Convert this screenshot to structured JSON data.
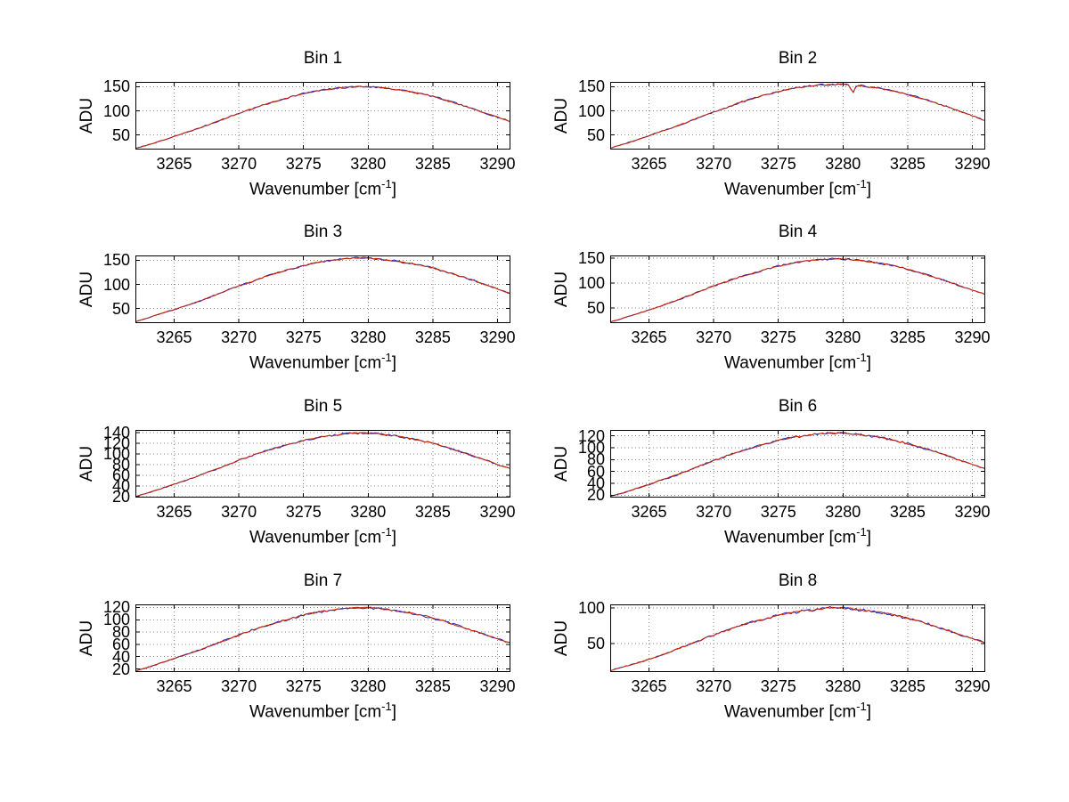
{
  "figure": {
    "background": "#ffffff"
  },
  "labels": {
    "ylabel": "ADU",
    "xlabel_prefix": "Wavenumber [cm",
    "xlabel_sup": "-1",
    "xlabel_suffix": "]"
  },
  "style": {
    "series_colors": [
      "#2222bb",
      "#cc2200"
    ],
    "grid_color": "#8a8a8a",
    "axis_color": "#000000",
    "noise_amplitude_blue": 1.8,
    "noise_amplitude_red": 1.2
  },
  "chart_data": [
    {
      "type": "line",
      "title": "Bin 1",
      "xlabel": "Wavenumber [cm-1]",
      "ylabel": "ADU",
      "grid": true,
      "xlim": [
        3262,
        3291
      ],
      "ylim": [
        20,
        160
      ],
      "xticks": [
        3265,
        3270,
        3275,
        3280,
        3285,
        3290
      ],
      "yticks": [
        50,
        100,
        150
      ],
      "note": "two nearly identical overlaid traces (blue under red)",
      "x": [
        3262,
        3263,
        3264,
        3265,
        3266,
        3267,
        3268,
        3269,
        3270,
        3271,
        3272,
        3273,
        3274,
        3275,
        3276,
        3277,
        3278,
        3279,
        3280,
        3281,
        3282,
        3283,
        3284,
        3285,
        3286,
        3287,
        3288,
        3289,
        3290,
        3291
      ],
      "y": [
        22,
        30,
        38,
        47,
        56,
        65,
        75,
        85,
        95,
        104,
        113,
        121,
        129,
        136,
        141,
        145,
        148,
        150,
        150,
        148,
        145,
        141,
        136,
        130,
        122,
        114,
        105,
        96,
        87,
        78
      ]
    },
    {
      "type": "line",
      "title": "Bin 2",
      "xlabel": "Wavenumber [cm-1]",
      "ylabel": "ADU",
      "grid": true,
      "xlim": [
        3262,
        3291
      ],
      "ylim": [
        20,
        160
      ],
      "xticks": [
        3265,
        3270,
        3275,
        3280,
        3285,
        3290
      ],
      "yticks": [
        50,
        100,
        150
      ],
      "note": "two nearly identical overlaid traces; narrow downward spike near 3280.8",
      "spike": {
        "x": 3280.75,
        "depth": 17,
        "halfwidth": 0.3
      },
      "x": [
        3262,
        3263,
        3264,
        3265,
        3266,
        3267,
        3268,
        3269,
        3270,
        3271,
        3272,
        3273,
        3274,
        3275,
        3276,
        3277,
        3278,
        3279,
        3280,
        3281,
        3282,
        3283,
        3284,
        3285,
        3286,
        3287,
        3288,
        3289,
        3290,
        3291
      ],
      "y": [
        23,
        31,
        39,
        49,
        58,
        67,
        77,
        88,
        98,
        107,
        117,
        125,
        133,
        140,
        146,
        150,
        153,
        155,
        155,
        153,
        150,
        146,
        140,
        134,
        126,
        118,
        109,
        99,
        90,
        80
      ]
    },
    {
      "type": "line",
      "title": "Bin 3",
      "xlabel": "Wavenumber [cm-1]",
      "ylabel": "ADU",
      "grid": true,
      "xlim": [
        3262,
        3291
      ],
      "ylim": [
        20,
        160
      ],
      "xticks": [
        3265,
        3270,
        3275,
        3280,
        3285,
        3290
      ],
      "yticks": [
        50,
        100,
        150
      ],
      "note": "two nearly identical overlaid traces (blue under red)",
      "x": [
        3262,
        3263,
        3264,
        3265,
        3266,
        3267,
        3268,
        3269,
        3270,
        3271,
        3272,
        3273,
        3274,
        3275,
        3276,
        3277,
        3278,
        3279,
        3280,
        3281,
        3282,
        3283,
        3284,
        3285,
        3286,
        3287,
        3288,
        3289,
        3290,
        3291
      ],
      "y": [
        23,
        31,
        40,
        48,
        57,
        66,
        76,
        87,
        97,
        106,
        116,
        124,
        132,
        139,
        145,
        149,
        152,
        155,
        155,
        152,
        149,
        145,
        140,
        134,
        126,
        118,
        110,
        100,
        91,
        81
      ]
    },
    {
      "type": "line",
      "title": "Bin 4",
      "xlabel": "Wavenumber [cm-1]",
      "ylabel": "ADU",
      "grid": true,
      "xlim": [
        3262,
        3291
      ],
      "ylim": [
        20,
        155
      ],
      "xticks": [
        3265,
        3270,
        3275,
        3280,
        3285,
        3290
      ],
      "yticks": [
        50,
        100,
        150
      ],
      "note": "two nearly identical overlaid traces (blue under red)",
      "x": [
        3262,
        3263,
        3264,
        3265,
        3266,
        3267,
        3268,
        3269,
        3270,
        3271,
        3272,
        3273,
        3274,
        3275,
        3276,
        3277,
        3278,
        3279,
        3280,
        3281,
        3282,
        3283,
        3284,
        3285,
        3286,
        3287,
        3288,
        3289,
        3290,
        3291
      ],
      "y": [
        22,
        30,
        38,
        46,
        55,
        64,
        74,
        84,
        94,
        103,
        112,
        119,
        127,
        134,
        139,
        143,
        146,
        148,
        148,
        146,
        143,
        139,
        134,
        128,
        120,
        112,
        104,
        95,
        86,
        77
      ]
    },
    {
      "type": "line",
      "title": "Bin 5",
      "xlabel": "Wavenumber [cm-1]",
      "ylabel": "ADU",
      "grid": true,
      "xlim": [
        3262,
        3291
      ],
      "ylim": [
        18,
        145
      ],
      "xticks": [
        3265,
        3270,
        3275,
        3280,
        3285,
        3290
      ],
      "yticks": [
        20,
        40,
        60,
        80,
        100,
        120,
        140
      ],
      "note": "two nearly identical overlaid traces (blue under red)",
      "x": [
        3262,
        3263,
        3264,
        3265,
        3266,
        3267,
        3268,
        3269,
        3270,
        3271,
        3272,
        3273,
        3274,
        3275,
        3276,
        3277,
        3278,
        3279,
        3280,
        3281,
        3282,
        3283,
        3284,
        3285,
        3286,
        3287,
        3288,
        3289,
        3290,
        3291
      ],
      "y": [
        20,
        27,
        35,
        43,
        51,
        60,
        69,
        78,
        88,
        97,
        105,
        112,
        119,
        125,
        130,
        134,
        137,
        139,
        139,
        137,
        134,
        130,
        125,
        120,
        113,
        105,
        97,
        89,
        80,
        72
      ]
    },
    {
      "type": "line",
      "title": "Bin 6",
      "xlabel": "Wavenumber [cm-1]",
      "ylabel": "ADU",
      "grid": true,
      "xlim": [
        3262,
        3291
      ],
      "ylim": [
        16,
        130
      ],
      "xticks": [
        3265,
        3270,
        3275,
        3280,
        3285,
        3290
      ],
      "yticks": [
        20,
        40,
        60,
        80,
        100,
        120
      ],
      "note": "two nearly identical overlaid traces (blue under red)",
      "x": [
        3262,
        3263,
        3264,
        3265,
        3266,
        3267,
        3268,
        3269,
        3270,
        3271,
        3272,
        3273,
        3274,
        3275,
        3276,
        3277,
        3278,
        3279,
        3280,
        3281,
        3282,
        3283,
        3284,
        3285,
        3286,
        3287,
        3288,
        3289,
        3290,
        3291
      ],
      "y": [
        18,
        24,
        31,
        38,
        46,
        53,
        61,
        70,
        78,
        86,
        94,
        100,
        107,
        112,
        117,
        120,
        123,
        125,
        125,
        123,
        120,
        117,
        112,
        107,
        101,
        94,
        87,
        79,
        72,
        64
      ]
    },
    {
      "type": "line",
      "title": "Bin 7",
      "xlabel": "Wavenumber [cm-1]",
      "ylabel": "ADU",
      "grid": true,
      "xlim": [
        3262,
        3291
      ],
      "ylim": [
        15,
        125
      ],
      "xticks": [
        3265,
        3270,
        3275,
        3280,
        3285,
        3290
      ],
      "yticks": [
        20,
        40,
        60,
        80,
        100,
        120
      ],
      "note": "two nearly identical overlaid traces (blue under red)",
      "x": [
        3262,
        3263,
        3264,
        3265,
        3266,
        3267,
        3268,
        3269,
        3270,
        3271,
        3272,
        3273,
        3274,
        3275,
        3276,
        3277,
        3278,
        3279,
        3280,
        3281,
        3282,
        3283,
        3284,
        3285,
        3286,
        3287,
        3288,
        3289,
        3290,
        3291
      ],
      "y": [
        17,
        23,
        30,
        37,
        44,
        51,
        59,
        67,
        75,
        83,
        90,
        96,
        102,
        108,
        112,
        115,
        118,
        120,
        119,
        118,
        115,
        112,
        108,
        103,
        97,
        90,
        83,
        76,
        69,
        62
      ]
    },
    {
      "type": "line",
      "title": "Bin 8",
      "xlabel": "Wavenumber [cm-1]",
      "ylabel": "ADU",
      "grid": true,
      "xlim": [
        3262,
        3291
      ],
      "ylim": [
        10,
        105
      ],
      "xticks": [
        3265,
        3270,
        3275,
        3280,
        3285,
        3290
      ],
      "yticks": [
        50,
        100
      ],
      "note": "two nearly identical overlaid traces (blue under red)",
      "x": [
        3262,
        3263,
        3264,
        3265,
        3266,
        3267,
        3268,
        3269,
        3270,
        3271,
        3272,
        3273,
        3274,
        3275,
        3276,
        3277,
        3278,
        3279,
        3280,
        3281,
        3282,
        3283,
        3284,
        3285,
        3286,
        3287,
        3288,
        3289,
        3290,
        3291
      ],
      "y": [
        12,
        17,
        22,
        28,
        34,
        41,
        48,
        55,
        62,
        68,
        75,
        80,
        85,
        90,
        93,
        96,
        98,
        100,
        100,
        98,
        96,
        93,
        90,
        85,
        81,
        75,
        69,
        63,
        57,
        51
      ]
    }
  ]
}
